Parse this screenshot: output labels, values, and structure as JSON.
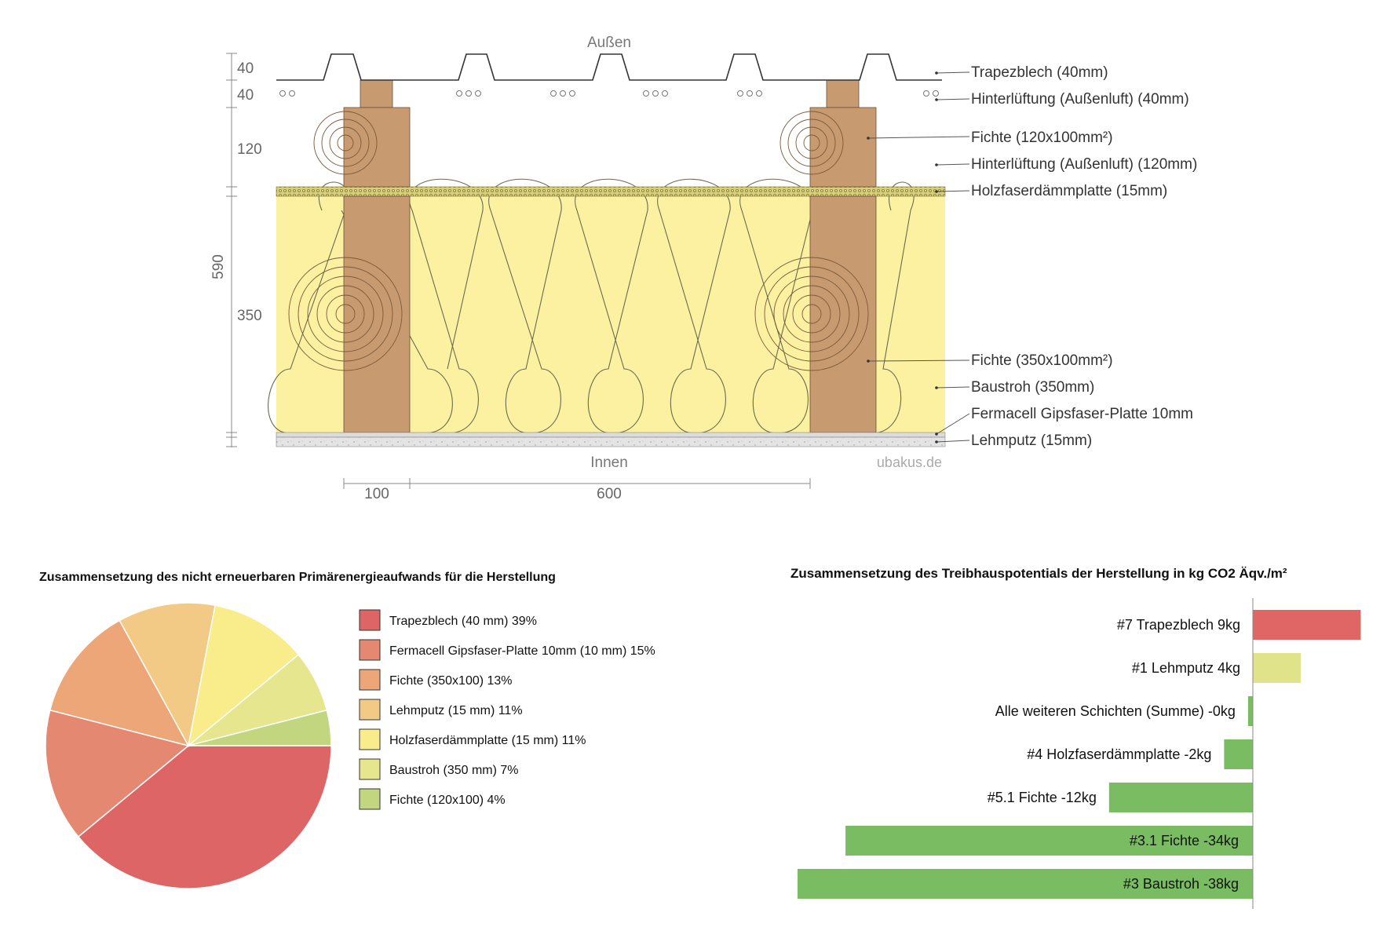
{
  "section": {
    "outside_label": "Außen",
    "inside_label": "Innen",
    "watermark": "ubakus.de",
    "dims_left": [
      "40",
      "40",
      "120",
      "350"
    ],
    "dim_total": "590",
    "dims_bottom": [
      "100",
      "600"
    ],
    "layer_labels": [
      "Trapezblech (40mm)",
      "Hinterlüftung (Außenluft) (40mm)",
      "Fichte (120x100mm²)",
      "Hinterlüftung (Außenluft) (120mm)",
      "Holzfaserdämmplatte (15mm)",
      "Fichte (350x100mm²)",
      "Baustroh (350mm)",
      "Fermacell Gipsfaser-Platte 10mm",
      "Lehmputz (15mm)"
    ],
    "colors": {
      "wood": "#c89a70",
      "straw": "#fcf1a1",
      "fiberboard": "#d8cf7a",
      "gypsum": "#dcdcdc",
      "clay": "#e4e4e4"
    }
  },
  "chart_data": [
    {
      "type": "pie",
      "title": "Zusammensetzung des nicht erneuerbaren Primärenergieaufwands für die Herstellung",
      "legend_placement": "right",
      "slices": [
        {
          "label": "Trapezblech (40 mm) 39%",
          "value": 39,
          "color": "#de6565"
        },
        {
          "label": "Fermacell Gipsfaser-Platte 10mm (10 mm) 15%",
          "value": 15,
          "color": "#e48872"
        },
        {
          "label": "Fichte (350x100) 13%",
          "value": 13,
          "color": "#eca677"
        },
        {
          "label": "Lehmputz (15 mm) 11%",
          "value": 11,
          "color": "#f2c985"
        },
        {
          "label": "Holzfaserdämmplatte (15 mm) 11%",
          "value": 11,
          "color": "#f9ec8a"
        },
        {
          "label": "Baustroh (350 mm) 7%",
          "value": 7,
          "color": "#e6e68e"
        },
        {
          "label": "Fichte (120x100) 4%",
          "value": 4,
          "color": "#c2d67f"
        }
      ]
    },
    {
      "type": "bar",
      "orientation": "horizontal",
      "title": "Zusammensetzung des Treibhauspotentials der Herstellung in kg CO2 Äqv./m²",
      "unit": "kg",
      "xlim": [
        -38,
        9
      ],
      "bars": [
        {
          "label": "#7 Trapezblech 9kg",
          "value": 9,
          "color": "#e06666"
        },
        {
          "label": "#1 Lehmputz 4kg",
          "value": 4,
          "color": "#e0e38a"
        },
        {
          "label": "Alle weiteren Schichten (Summe) -0kg",
          "value": -0.4,
          "color": "#79bc62"
        },
        {
          "label": "#4 Holzfaserdämmplatte -2kg",
          "value": -2.4,
          "color": "#79bc62"
        },
        {
          "label": "#5.1 Fichte -12kg",
          "value": -12,
          "color": "#79bc62"
        },
        {
          "label": "#3.1 Fichte -34kg",
          "value": -34,
          "color": "#79bc62"
        },
        {
          "label": "#3 Baustroh -38kg",
          "value": -38,
          "color": "#79bc62"
        }
      ]
    }
  ]
}
